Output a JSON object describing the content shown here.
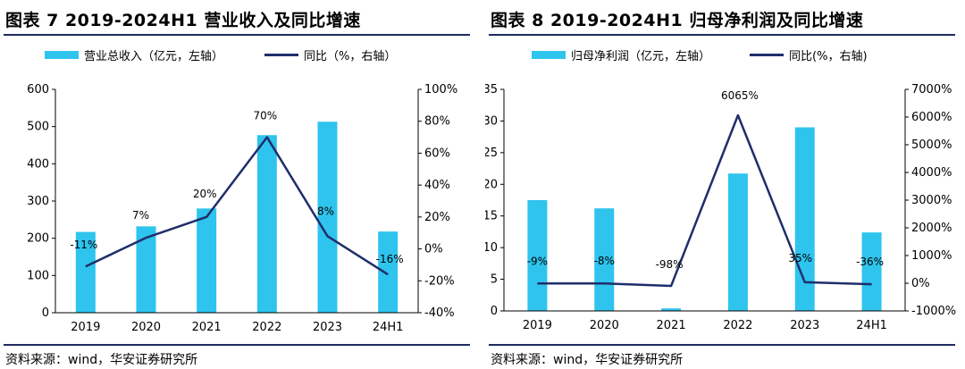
{
  "colors": {
    "bar": "#2ec4ee",
    "line": "#1f2e6b",
    "axis": "#000000"
  },
  "panels": [
    {
      "title": "图表 7 2019-2024H1 营业收入及同比增速",
      "source": "资料来源：wind，华安证券研究所",
      "legend": {
        "bar_label": "营业总收入（亿元，左轴）",
        "line_label": "同比（%，右轴）"
      }
    },
    {
      "title": "图表 8 2019-2024H1 归母净利润及同比增速",
      "source": "资料来源：wind，华安证券研究所",
      "legend": {
        "bar_label": "归母净利润（亿元，左轴）",
        "line_label": "同比(%，右轴)"
      }
    }
  ],
  "chart_data": [
    {
      "type": "bar",
      "categories": [
        "2019",
        "2020",
        "2021",
        "2022",
        "2023",
        "24H1"
      ],
      "series": [
        {
          "name": "营业总收入（亿元，左轴）",
          "type": "bar",
          "axis": "left",
          "values": [
            217,
            232,
            280,
            477,
            513,
            218
          ]
        },
        {
          "name": "同比（%，右轴）",
          "type": "line",
          "axis": "right",
          "values": [
            -11,
            7,
            20,
            70,
            8,
            -16
          ],
          "labels": [
            "-11%",
            "7%",
            "20%",
            "70%",
            "8%",
            "-16%"
          ]
        }
      ],
      "left_axis": {
        "ylim": [
          0,
          600
        ],
        "ticks": [
          "0",
          "100",
          "200",
          "300",
          "400",
          "500",
          "600"
        ]
      },
      "right_axis": {
        "ylim": [
          -40,
          100
        ],
        "ticks": [
          "-40%",
          "-20%",
          "0%",
          "20%",
          "40%",
          "60%",
          "80%",
          "100%"
        ]
      },
      "grid": false,
      "legend_position": "top"
    },
    {
      "type": "bar",
      "categories": [
        "2019",
        "2020",
        "2021",
        "2022",
        "2023",
        "24H1"
      ],
      "series": [
        {
          "name": "归母净利润（亿元，左轴）",
          "type": "bar",
          "axis": "left",
          "values": [
            17.5,
            16.2,
            0.4,
            21.7,
            29,
            12.4
          ]
        },
        {
          "name": "同比(%，右轴)",
          "type": "line",
          "axis": "right",
          "values": [
            -9,
            -8,
            -98,
            6065,
            35,
            -36
          ],
          "labels": [
            "-9%",
            "-8%",
            "-98%",
            "6065%",
            "35%",
            "-36%"
          ]
        }
      ],
      "left_axis": {
        "ylim": [
          0,
          35
        ],
        "ticks": [
          "0",
          "5",
          "10",
          "15",
          "20",
          "25",
          "30",
          "35"
        ]
      },
      "right_axis": {
        "ylim": [
          -1000,
          7000
        ],
        "ticks": [
          "-1000%",
          "0%",
          "1000%",
          "2000%",
          "3000%",
          "4000%",
          "5000%",
          "6000%",
          "7000%"
        ]
      },
      "grid": false,
      "legend_position": "top"
    }
  ]
}
